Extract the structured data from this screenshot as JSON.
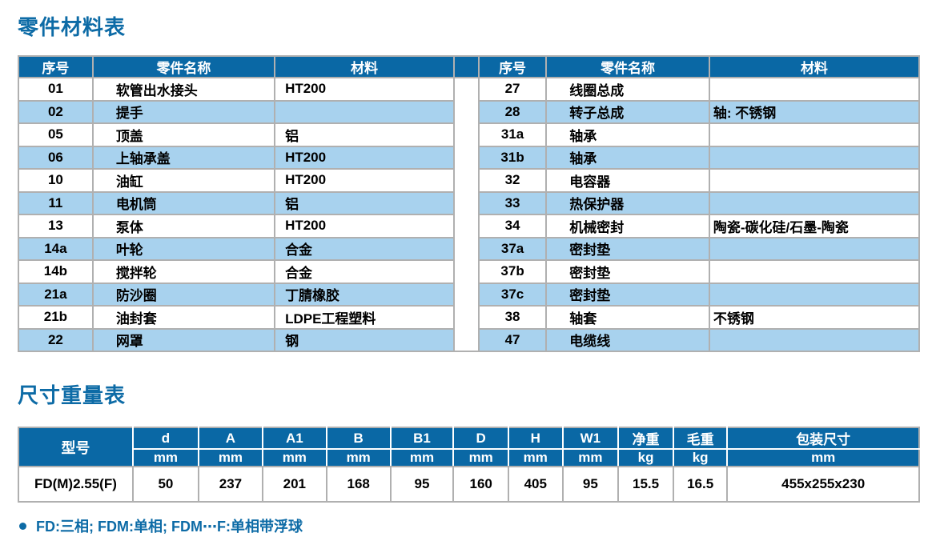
{
  "colors": {
    "header_bg": "#0a68a5",
    "row_alt_bg": "#a8d2ee",
    "grid_border": "#b0b0b0",
    "title_blue": "#0d6ba6"
  },
  "parts_table": {
    "title": "零件材料表",
    "columns": {
      "no": "序号",
      "name": "零件名称",
      "material": "材料"
    },
    "rows": [
      {
        "l_no": "01",
        "l_name": "软管出水接头",
        "l_mat": "HT200",
        "r_no": "27",
        "r_name": "线圈总成",
        "r_mat": ""
      },
      {
        "l_no": "02",
        "l_name": "提手",
        "l_mat": "",
        "r_no": "28",
        "r_name": "转子总成",
        "r_mat": "轴: 不锈钢"
      },
      {
        "l_no": "05",
        "l_name": "顶盖",
        "l_mat": "铝",
        "r_no": "31a",
        "r_name": "轴承",
        "r_mat": ""
      },
      {
        "l_no": "06",
        "l_name": "上轴承盖",
        "l_mat": "HT200",
        "r_no": "31b",
        "r_name": "轴承",
        "r_mat": ""
      },
      {
        "l_no": "10",
        "l_name": "油缸",
        "l_mat": "HT200",
        "r_no": "32",
        "r_name": "电容器",
        "r_mat": ""
      },
      {
        "l_no": "11",
        "l_name": "电机筒",
        "l_mat": "铝",
        "r_no": "33",
        "r_name": "热保护器",
        "r_mat": ""
      },
      {
        "l_no": "13",
        "l_name": "泵体",
        "l_mat": "HT200",
        "r_no": "34",
        "r_name": "机械密封",
        "r_mat": "陶瓷-碳化硅/石墨-陶瓷"
      },
      {
        "l_no": "14a",
        "l_name": "叶轮",
        "l_mat": "合金",
        "r_no": "37a",
        "r_name": "密封垫",
        "r_mat": ""
      },
      {
        "l_no": "14b",
        "l_name": "搅拌轮",
        "l_mat": "合金",
        "r_no": "37b",
        "r_name": "密封垫",
        "r_mat": ""
      },
      {
        "l_no": "21a",
        "l_name": "防沙圈",
        "l_mat": "丁腈橡胶",
        "r_no": "37c",
        "r_name": "密封垫",
        "r_mat": ""
      },
      {
        "l_no": "21b",
        "l_name": "油封套",
        "l_mat": "LDPE工程塑料",
        "r_no": "38",
        "r_name": "轴套",
        "r_mat": "不锈钢"
      },
      {
        "l_no": "22",
        "l_name": "网罩",
        "l_mat": "钢",
        "r_no": "47",
        "r_name": "电缆线",
        "r_mat": ""
      }
    ]
  },
  "size_table": {
    "title": "尺寸重量表",
    "model_header": "型号",
    "columns": [
      {
        "label": "d",
        "unit": "mm"
      },
      {
        "label": "A",
        "unit": "mm"
      },
      {
        "label": "A1",
        "unit": "mm"
      },
      {
        "label": "B",
        "unit": "mm"
      },
      {
        "label": "B1",
        "unit": "mm"
      },
      {
        "label": "D",
        "unit": "mm"
      },
      {
        "label": "H",
        "unit": "mm"
      },
      {
        "label": "W1",
        "unit": "mm"
      },
      {
        "label": "净重",
        "unit": "kg"
      },
      {
        "label": "毛重",
        "unit": "kg"
      },
      {
        "label": "包装尺寸",
        "unit": "mm"
      }
    ],
    "row": {
      "model": "FD(M)2.55(F)",
      "values": [
        "50",
        "237",
        "201",
        "168",
        "95",
        "160",
        "405",
        "95",
        "15.5",
        "16.5",
        "455x255x230"
      ]
    }
  },
  "note": {
    "text": "FD:三相; FDM:单相; FDM⋯F:单相带浮球"
  }
}
